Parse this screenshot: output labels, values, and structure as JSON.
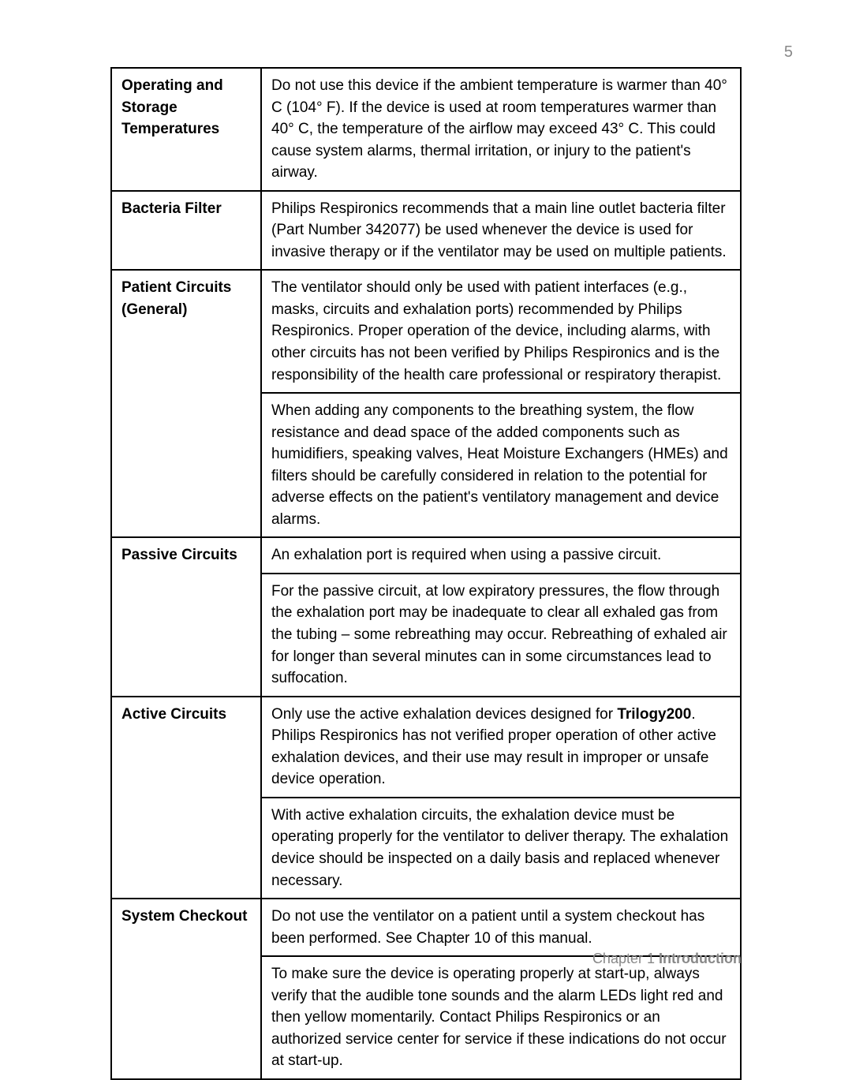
{
  "page_number": "5",
  "footer": {
    "chapter": "Chapter 1",
    "title": "Introduction"
  },
  "rows": [
    {
      "label": "Operating and Storage Temperatures",
      "cells": [
        {
          "text": "Do not use this device if the ambient temperature is warmer than 40° C (104° F). If the device is used at room temperatures warmer than 40° C, the temperature of the airflow may exceed 43° C. This could cause system alarms, thermal irritation, or injury to the patient's airway."
        }
      ]
    },
    {
      "label": "Bacteria Filter",
      "cells": [
        {
          "text": "Philips Respironics recommends that a main line outlet bacteria filter (Part Number 342077) be used whenever the device is used for invasive therapy or if the ventilator may be used on multiple patients."
        }
      ]
    },
    {
      "label": "Patient Circuits (General)",
      "cells": [
        {
          "text": "The ventilator should only be used with patient interfaces (e.g., masks, circuits and exhalation ports) recommended by Philips Respironics. Proper operation of the device, including alarms, with other circuits has not been verified by Philips Respironics and is the responsibility of the health care professional or respiratory therapist."
        },
        {
          "text": "When adding any components to the breathing system, the flow resistance and dead space of the added components such as humidifiers, speaking valves, Heat Moisture Exchangers (HMEs) and filters should be carefully considered in relation to the potential for adverse effects on the patient's ventilatory management and device alarms."
        }
      ]
    },
    {
      "label": "Passive Circuits",
      "cells": [
        {
          "text": "An exhalation port is required when using a passive circuit."
        },
        {
          "text": "For the passive circuit, at low expiratory pressures, the flow through the exhalation port may be inadequate to clear all exhaled gas from the tubing – some rebreathing may occur. Rebreathing of exhaled air for longer than several minutes can in some circumstances lead to suffocation."
        }
      ]
    },
    {
      "label": "Active Circuits",
      "cells": [
        {
          "pre": "Only use the active exhalation devices designed for ",
          "bold": "Trilogy200",
          "post": ". Philips Respironics has not verified proper operation of other active exhalation devices, and their use may result in improper or unsafe device operation."
        },
        {
          "text": "With active exhalation circuits, the exhalation device must be operating properly for the ventilator to deliver therapy. The exhalation device should be inspected on a daily basis and replaced whenever necessary."
        }
      ]
    },
    {
      "label": "System Checkout",
      "cells": [
        {
          "text": "Do not use the ventilator on a patient until a system checkout has been performed. See Chapter 10 of this manual."
        },
        {
          "text": "To make sure the device is operating properly at start-up, always verify that the audible tone sounds and the alarm LEDs light red and then yellow momentarily. Contact Philips Respironics or an authorized service center for service if these indications do not occur at start-up."
        }
      ]
    }
  ]
}
